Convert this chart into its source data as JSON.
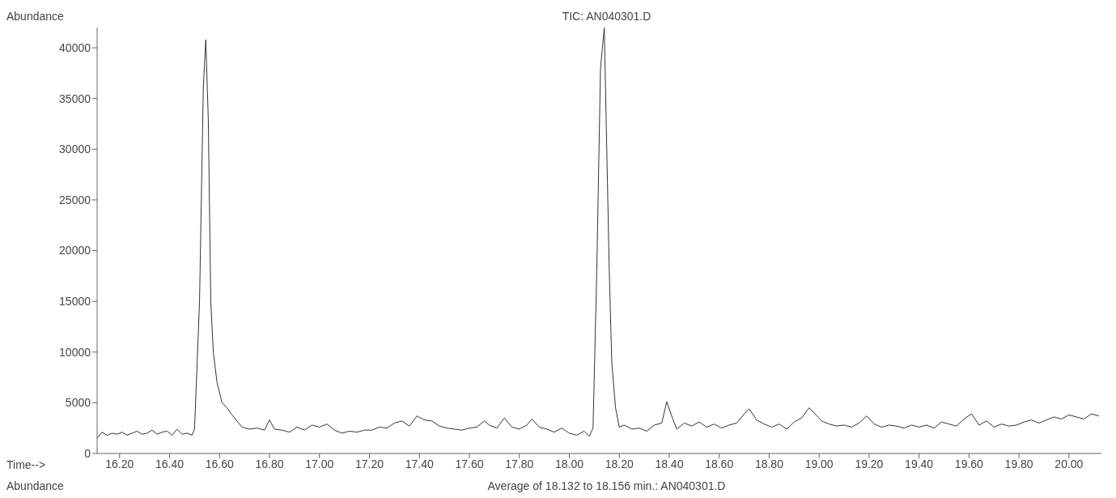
{
  "chart_data": {
    "type": "line",
    "title": "TIC: AN040301.D",
    "xlabel": "Time-->",
    "ylabel": "Abundance",
    "annotations": [
      "Abundance",
      "Average of 18.132 to 18.156 min.: AN040301.D"
    ],
    "xlim": [
      16.11,
      20.13
    ],
    "ylim": [
      0,
      42000
    ],
    "xticks": [
      {
        "value": 16.2,
        "label": "16.20"
      },
      {
        "value": 16.4,
        "label": "16.40"
      },
      {
        "value": 16.6,
        "label": "16.60"
      },
      {
        "value": 16.8,
        "label": "16.80"
      },
      {
        "value": 17,
        "label": "17.00"
      },
      {
        "value": 17.2,
        "label": "17.20"
      },
      {
        "value": 17.4,
        "label": "17.40"
      },
      {
        "value": 17.6,
        "label": "17.60"
      },
      {
        "value": 17.8,
        "label": "17.80"
      },
      {
        "value": 18,
        "label": "18.00"
      },
      {
        "value": 18.2,
        "label": "18.20"
      },
      {
        "value": 18.4,
        "label": "18.40"
      },
      {
        "value": 18.6,
        "label": "18.60"
      },
      {
        "value": 18.8,
        "label": "18.80"
      },
      {
        "value": 19,
        "label": "19.00"
      },
      {
        "value": 19.2,
        "label": "19.20"
      },
      {
        "value": 19.4,
        "label": "19.40"
      },
      {
        "value": 19.6,
        "label": "19.60"
      },
      {
        "value": 19.8,
        "label": "19.80"
      },
      {
        "value": 20,
        "label": "20.00"
      }
    ],
    "yticks": [
      0,
      5000,
      10000,
      15000,
      20000,
      25000,
      30000,
      35000,
      40000
    ],
    "grid": false,
    "legend": false,
    "marker": "none",
    "line_style": "solid",
    "x": [
      16.11,
      16.13,
      16.15,
      16.17,
      16.19,
      16.21,
      16.23,
      16.25,
      16.27,
      16.29,
      16.31,
      16.33,
      16.35,
      16.37,
      16.39,
      16.41,
      16.43,
      16.45,
      16.47,
      16.49,
      16.5,
      16.52,
      16.535,
      16.545,
      16.555,
      16.565,
      16.575,
      16.59,
      16.61,
      16.63,
      16.65,
      16.67,
      16.69,
      16.72,
      16.75,
      16.78,
      16.8,
      16.82,
      16.85,
      16.88,
      16.91,
      16.94,
      16.97,
      17,
      17.03,
      17.06,
      17.09,
      17.12,
      17.15,
      17.18,
      17.21,
      17.24,
      17.27,
      17.3,
      17.33,
      17.36,
      17.39,
      17.42,
      17.45,
      17.48,
      17.51,
      17.54,
      17.57,
      17.6,
      17.63,
      17.66,
      17.68,
      17.71,
      17.74,
      17.77,
      17.8,
      17.83,
      17.85,
      17.88,
      17.91,
      17.94,
      17.97,
      18,
      18.03,
      18.06,
      18.08,
      18.095,
      18.11,
      18.125,
      18.14,
      18.15,
      18.16,
      18.17,
      18.185,
      18.2,
      18.22,
      18.25,
      18.28,
      18.31,
      18.34,
      18.37,
      18.39,
      18.41,
      18.43,
      18.46,
      18.49,
      18.52,
      18.55,
      18.58,
      18.61,
      18.64,
      18.67,
      18.7,
      18.72,
      18.75,
      18.78,
      18.81,
      18.84,
      18.87,
      18.9,
      18.93,
      18.96,
      18.98,
      19.01,
      19.04,
      19.07,
      19.1,
      19.13,
      19.16,
      19.19,
      19.22,
      19.25,
      19.28,
      19.31,
      19.34,
      19.37,
      19.4,
      19.43,
      19.46,
      19.49,
      19.52,
      19.55,
      19.58,
      19.61,
      19.64,
      19.67,
      19.7,
      19.73,
      19.76,
      19.79,
      19.82,
      19.85,
      19.88,
      19.91,
      19.94,
      19.97,
      20,
      20.03,
      20.06,
      20.09,
      20.12
    ],
    "series": [
      {
        "color": "#333333",
        "values": [
          1500,
          2100,
          1800,
          2000,
          1900,
          2100,
          1800,
          2000,
          2200,
          1900,
          2000,
          2300,
          1900,
          2100,
          2200,
          1800,
          2400,
          1900,
          2000,
          1800,
          2400,
          15000,
          36000,
          40800,
          33000,
          15000,
          10000,
          7000,
          5000,
          4500,
          3800,
          3200,
          2600,
          2400,
          2500,
          2300,
          3300,
          2400,
          2300,
          2100,
          2600,
          2300,
          2800,
          2600,
          2900,
          2300,
          2000,
          2200,
          2100,
          2300,
          2300,
          2600,
          2500,
          3000,
          3200,
          2700,
          3700,
          3300,
          3200,
          2700,
          2500,
          2400,
          2300,
          2500,
          2600,
          3200,
          2800,
          2500,
          3500,
          2600,
          2400,
          2800,
          3400,
          2600,
          2400,
          2100,
          2500,
          2000,
          1800,
          2200,
          1700,
          2500,
          18000,
          38000,
          42000,
          30000,
          18000,
          9000,
          4500,
          2600,
          2800,
          2400,
          2500,
          2200,
          2800,
          3000,
          5100,
          3700,
          2400,
          3000,
          2700,
          3100,
          2600,
          2900,
          2500,
          2800,
          3000,
          3900,
          4400,
          3300,
          2900,
          2600,
          2900,
          2400,
          3100,
          3500,
          4500,
          4000,
          3200,
          2900,
          2700,
          2800,
          2600,
          3000,
          3700,
          2900,
          2600,
          2800,
          2700,
          2500,
          2800,
          2600,
          2800,
          2500,
          3100,
          2900,
          2700,
          3400,
          3900,
          2800,
          3200,
          2600,
          2900,
          2700,
          2800,
          3100,
          3300,
          3000,
          3300,
          3600,
          3400,
          3800,
          3600,
          3400,
          3900,
          3700
        ]
      }
    ]
  }
}
